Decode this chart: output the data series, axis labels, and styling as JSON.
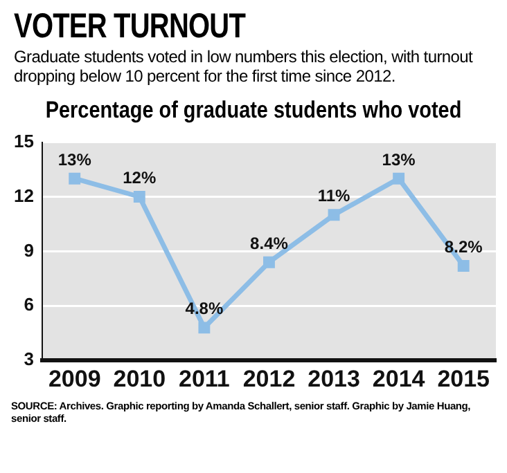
{
  "chart_data": {
    "type": "line",
    "title": "VOTER TURNOUT",
    "subtitle": "Graduate students voted in low numbers this election, with turnout dropping below 10 percent for the first time since 2012.",
    "ylabel": "Percentage of graduate students who voted",
    "categories": [
      "2009",
      "2010",
      "2011",
      "2012",
      "2013",
      "2014",
      "2015"
    ],
    "series": [
      {
        "color": "#8dbde6",
        "values": [
          13,
          12,
          4.8,
          8.4,
          11,
          13,
          8.2
        ],
        "value_labels": [
          "13%",
          "12%",
          "4.8%",
          "8.4%",
          "11%",
          "13%",
          "8.2%"
        ]
      }
    ],
    "ylim": [
      3,
      15
    ],
    "yticks": [
      3,
      6,
      9,
      12,
      15
    ],
    "grid": "y",
    "legend": false,
    "marker": "square",
    "line_style": "solid",
    "annotations": [
      "SOURCE: Archives. Graphic reporting by Amanda Schallert, senior staff. Graphic by Jamie Huang, senior staff."
    ]
  }
}
